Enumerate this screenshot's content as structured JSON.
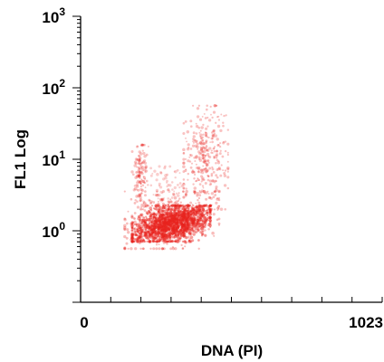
{
  "chart_data": {
    "type": "scatter",
    "xlabel": "DNA (PI)",
    "ylabel": "FL1 Log",
    "xlim": [
      0,
      1023
    ],
    "ylim_log10": [
      -1,
      3
    ],
    "y_scale": "log",
    "grid": false,
    "x_ticks": [
      {
        "value": 0,
        "label": "0"
      },
      {
        "value": 1023,
        "label": "1023"
      }
    ],
    "y_ticks": [
      {
        "value": 1,
        "base": "10",
        "exponent": "0"
      },
      {
        "value": 10,
        "base": "10",
        "exponent": "1"
      },
      {
        "value": 100,
        "base": "10",
        "exponent": "2"
      },
      {
        "value": 1000,
        "base": "10",
        "exponent": "3"
      }
    ],
    "series": [
      {
        "color": "#e8231f",
        "clusters": [
          {
            "x_range": [
              175,
              440
            ],
            "y_log10_range": [
              -0.15,
              0.35
            ],
            "count": 1400,
            "opacity": 0.45
          },
          {
            "x_range": [
              150,
              470
            ],
            "y_log10_range": [
              -0.25,
              0.55
            ],
            "count": 500,
            "opacity": 0.3
          },
          {
            "x_range": [
              175,
              230
            ],
            "y_log10_range": [
              0.3,
              1.2
            ],
            "count": 130,
            "opacity": 0.28
          },
          {
            "x_range": [
              350,
              500
            ],
            "y_log10_range": [
              0.3,
              1.75
            ],
            "count": 320,
            "opacity": 0.28
          },
          {
            "x_range": [
              230,
              350
            ],
            "y_log10_range": [
              0.3,
              0.9
            ],
            "count": 70,
            "opacity": 0.22
          }
        ]
      }
    ]
  }
}
